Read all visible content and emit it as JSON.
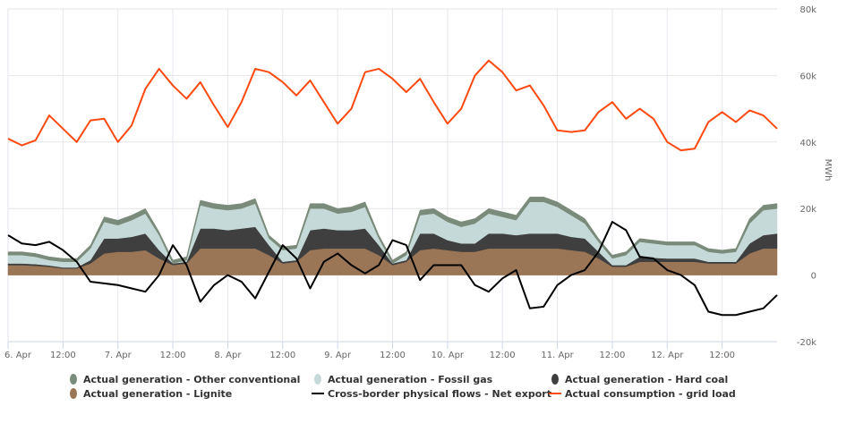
{
  "chart_data": {
    "type": "area",
    "title": "",
    "ylabel": "MWh",
    "xlabel": "",
    "ylim": [
      -20000,
      80000
    ],
    "yticks": [
      80000,
      60000,
      40000,
      20000,
      0,
      -20000
    ],
    "ytick_labels": [
      "80k",
      "60k",
      "40k",
      "20k",
      "0",
      "-20k"
    ],
    "x_step_hours": 3,
    "x_start": "6. Apr 00:00",
    "xtick_labels": [
      "6. Apr",
      "12:00",
      "7. Apr",
      "12:00",
      "8. Apr",
      "12:00",
      "9. Apr",
      "12:00",
      "10. Apr",
      "12:00",
      "11. Apr",
      "12:00",
      "12. Apr",
      "12:00"
    ],
    "grid": true,
    "legend_position": "bottom",
    "series": [
      {
        "name": "Actual generation - Other conventional",
        "type": "stacked-area",
        "color": "#7b8b7b",
        "values": [
          1000,
          1000,
          1000,
          1000,
          1000,
          1000,
          1000,
          1500,
          1500,
          1500,
          1500,
          1000,
          1000,
          1000,
          1500,
          1500,
          1500,
          1500,
          1500,
          1000,
          1000,
          1000,
          1500,
          1500,
          1500,
          1500,
          1500,
          1000,
          1000,
          1000,
          1500,
          1500,
          1500,
          1500,
          1500,
          1500,
          1500,
          1500,
          1500,
          1500,
          1500,
          1500,
          1500,
          1000,
          1000,
          1000,
          1000,
          1000,
          1000,
          1000,
          1000,
          1000,
          1000,
          1000,
          1500,
          1500,
          1500
        ]
      },
      {
        "name": "Actual generation - Fossil gas",
        "type": "stacked-area",
        "color": "#c5dad8",
        "values": [
          2500,
          2500,
          2200,
          1600,
          1700,
          1700,
          3500,
          5000,
          4000,
          5000,
          6000,
          4500,
          0,
          500,
          7000,
          6000,
          6000,
          6000,
          7000,
          2000,
          3500,
          3500,
          6500,
          6000,
          5000,
          5500,
          6500,
          2000,
          0,
          1500,
          5500,
          6000,
          5500,
          5000,
          6000,
          6000,
          5000,
          4500,
          9500,
          9500,
          8000,
          6500,
          4500,
          3000,
          2000,
          3000,
          4500,
          4300,
          4000,
          4000,
          4000,
          3000,
          2500,
          3000,
          6000,
          7500,
          7500
        ]
      },
      {
        "name": "Actual generation - Hard coal",
        "type": "stacked-area",
        "color": "#3f3f3f",
        "values": [
          500,
          500,
          500,
          400,
          300,
          300,
          1000,
          4500,
          4000,
          4500,
          5000,
          2500,
          500,
          500,
          6000,
          6000,
          5500,
          6000,
          6500,
          3000,
          500,
          500,
          6000,
          6000,
          5500,
          5500,
          6000,
          3000,
          500,
          500,
          5000,
          4500,
          3000,
          2500,
          2500,
          4500,
          4500,
          4000,
          4500,
          4500,
          4500,
          4000,
          4000,
          2000,
          500,
          500,
          1500,
          1200,
          1000,
          1000,
          1000,
          500,
          500,
          500,
          3000,
          4000,
          4500
        ]
      },
      {
        "name": "Actual generation - Lignite",
        "type": "stacked-area",
        "color": "#9a7556",
        "values": [
          3000,
          3000,
          2800,
          2500,
          2000,
          2000,
          3500,
          6500,
          7000,
          7000,
          7500,
          5000,
          3000,
          3500,
          8000,
          8000,
          8000,
          8000,
          8000,
          6000,
          3500,
          4000,
          7500,
          8000,
          8000,
          8000,
          8000,
          6000,
          3000,
          4000,
          7500,
          8000,
          7500,
          7000,
          7000,
          8000,
          8000,
          8000,
          8000,
          8000,
          8000,
          7500,
          7000,
          5000,
          2500,
          2500,
          4000,
          4000,
          4000,
          4000,
          4000,
          3500,
          3500,
          3500,
          6500,
          8000,
          8000
        ]
      },
      {
        "name": "Cross-border physical flows - Net export",
        "type": "line",
        "color": "#000000",
        "values": [
          12000,
          9500,
          9000,
          10000,
          7500,
          4000,
          -2000,
          -2500,
          -3000,
          -4000,
          -5000,
          0,
          9000,
          3000,
          -8000,
          -3000,
          0,
          -2000,
          -7000,
          1000,
          9000,
          5000,
          -4000,
          4000,
          6500,
          3000,
          500,
          3000,
          10500,
          9000,
          -1500,
          3000,
          3000,
          3000,
          -3000,
          -5000,
          -1000,
          1500,
          -10000,
          -9500,
          -3000,
          0,
          1500,
          7000,
          16000,
          13500,
          5500,
          5000,
          1500,
          0,
          -3000,
          -11000,
          -12000,
          -12000,
          -11000,
          -10000,
          -6000
        ]
      },
      {
        "name": "Actual consumption - grid load",
        "type": "line",
        "color": "#ff4a0f",
        "values": [
          41000,
          39000,
          40500,
          48000,
          44000,
          40000,
          46500,
          47000,
          40000,
          45000,
          56000,
          62000,
          57000,
          53000,
          58000,
          51000,
          44500,
          52000,
          62000,
          61000,
          58000,
          54000,
          58500,
          52000,
          45500,
          50000,
          61000,
          62000,
          59000,
          55000,
          59000,
          52000,
          45500,
          50000,
          60000,
          64500,
          61000,
          55500,
          57000,
          51000,
          43500,
          43000,
          43500,
          49000,
          52000,
          47000,
          50000,
          47000,
          40000,
          37500,
          38000,
          46000,
          49000,
          46000,
          49500,
          48000,
          44000
        ]
      }
    ]
  }
}
